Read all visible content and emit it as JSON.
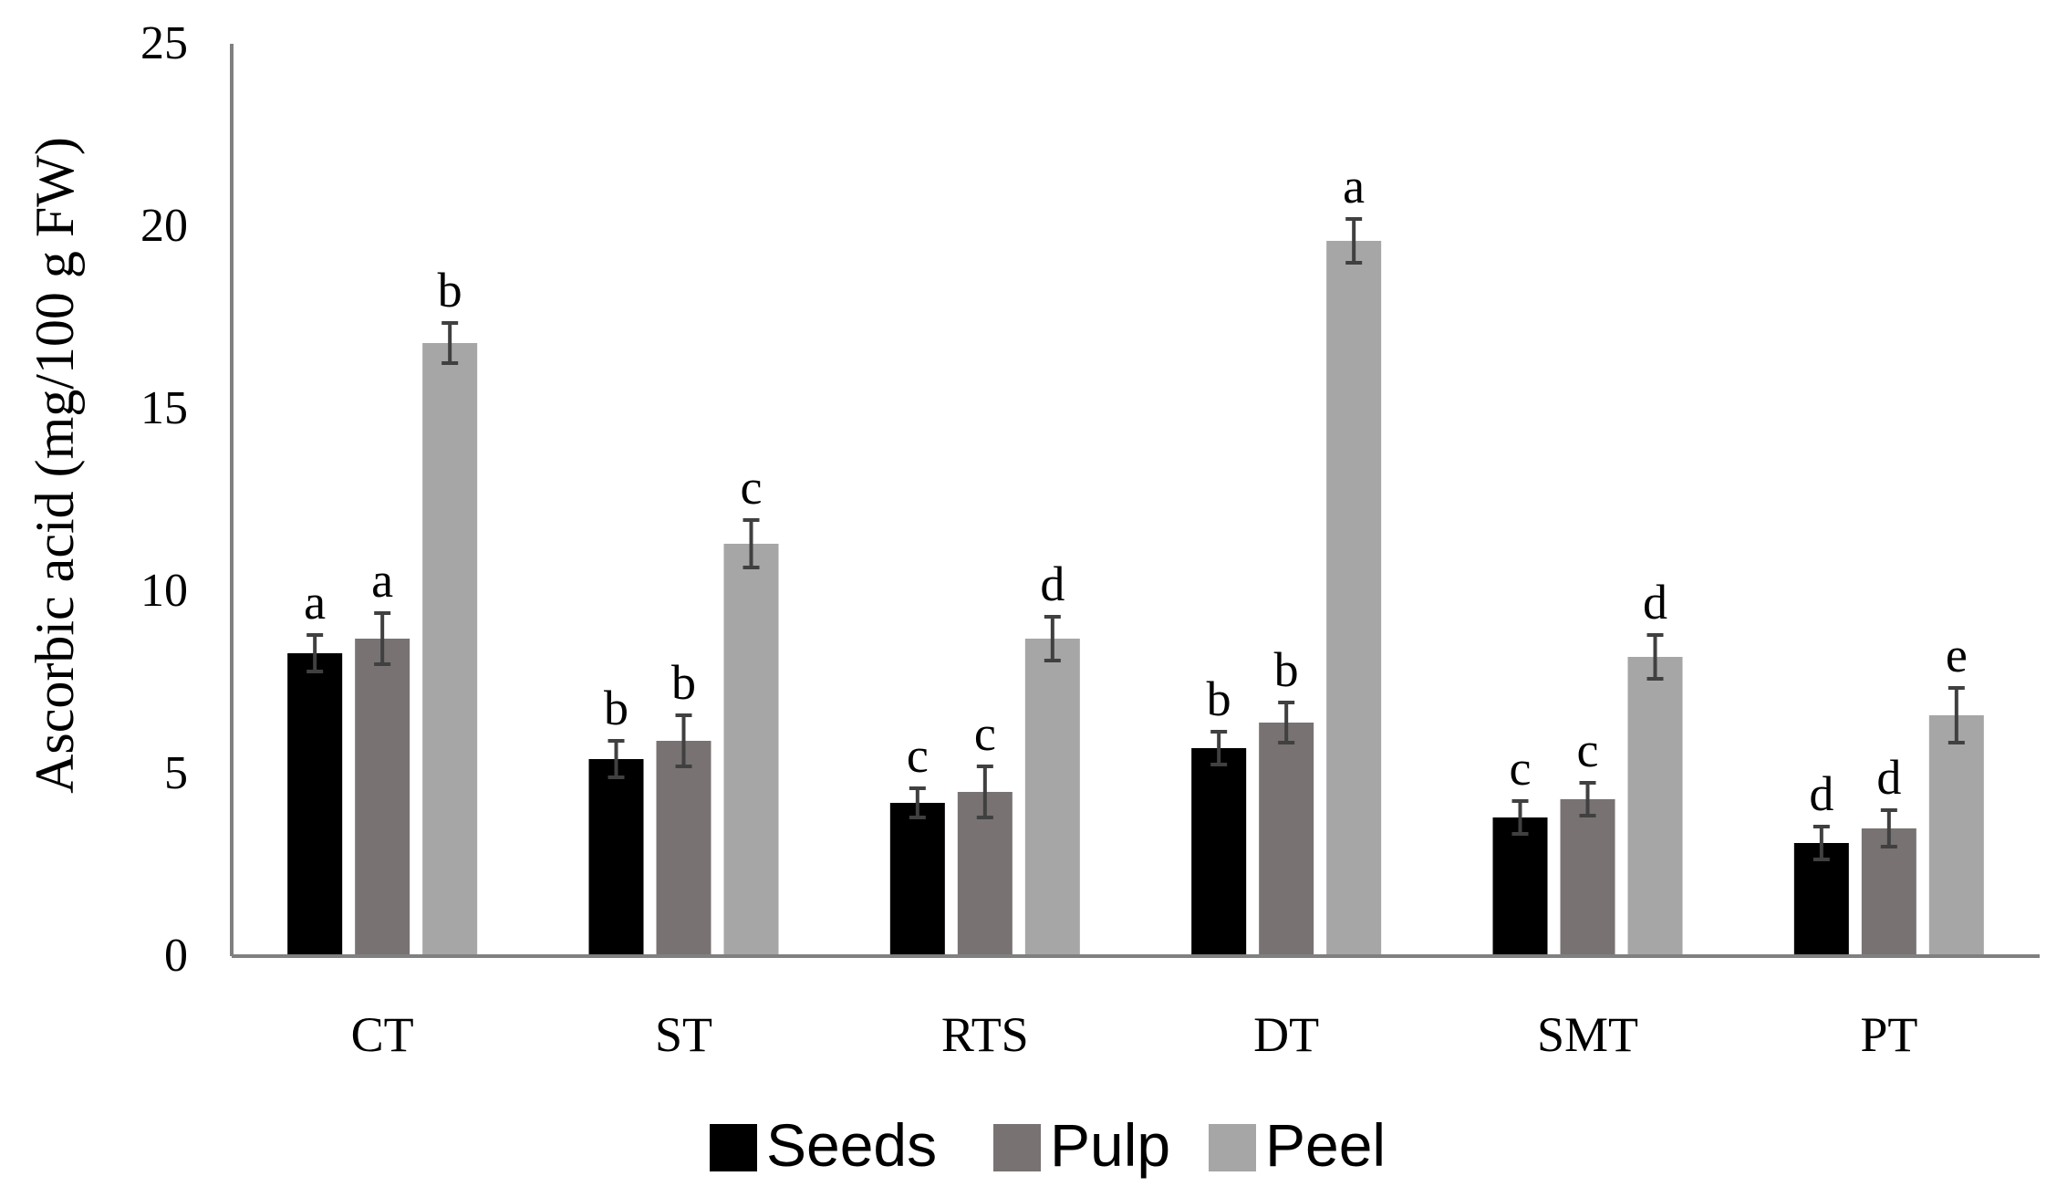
{
  "chart_data": {
    "type": "bar",
    "title": "",
    "xlabel": "",
    "ylabel": "Ascorbic acid (mg/100 g FW)",
    "ylim": [
      0,
      25
    ],
    "yticks": [
      0,
      5,
      10,
      15,
      20,
      25
    ],
    "grid": false,
    "legend_position": "bottom",
    "categories": [
      "CT",
      "ST",
      "RTS",
      "DT",
      "SMT",
      "PT"
    ],
    "series": [
      {
        "name": "Seeds",
        "color": "#000000",
        "values": [
          8.3,
          5.4,
          4.2,
          5.7,
          3.8,
          3.1
        ],
        "errors": [
          0.5,
          0.5,
          0.4,
          0.45,
          0.45,
          0.45
        ],
        "letters": [
          "a",
          "b",
          "c",
          "b",
          "c",
          "d"
        ]
      },
      {
        "name": "Pulp",
        "color": "#787272",
        "values": [
          8.7,
          5.9,
          4.5,
          6.4,
          4.3,
          3.5
        ],
        "errors": [
          0.7,
          0.7,
          0.7,
          0.55,
          0.45,
          0.5
        ],
        "letters": [
          "a",
          "b",
          "c",
          "b",
          "c",
          "d"
        ]
      },
      {
        "name": "Peel",
        "color": "#a6a6a6",
        "values": [
          16.8,
          11.3,
          8.7,
          19.6,
          8.2,
          6.6
        ],
        "errors": [
          0.55,
          0.65,
          0.6,
          0.6,
          0.6,
          0.75
        ],
        "letters": [
          "b",
          "c",
          "d",
          "a",
          "d",
          "e"
        ]
      }
    ]
  }
}
